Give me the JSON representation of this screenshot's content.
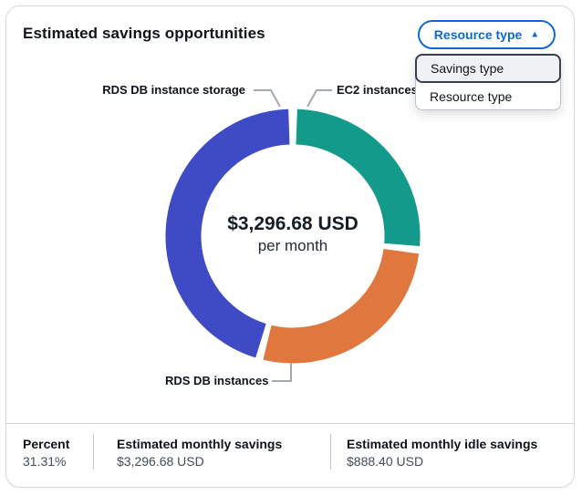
{
  "header": {
    "title": "Estimated savings opportunities",
    "dropdown_button": {
      "label": "Resource type",
      "icon": "triangle-up",
      "state": "expanded"
    },
    "dropdown_menu": {
      "options": [
        {
          "label": "Savings type",
          "highlighted": true
        },
        {
          "label": "Resource type",
          "highlighted": false
        }
      ]
    }
  },
  "chart_data": {
    "type": "donut",
    "title": "Estimated savings opportunities",
    "center_label": {
      "primary": "$3,296.68 USD",
      "secondary": "per month"
    },
    "legend_position": "callout-labels",
    "segments": [
      {
        "label": "EC2 instances",
        "color": "#149a8b",
        "share_pct_est": 26.5,
        "start_deg": 2,
        "end_deg": 94.5
      },
      {
        "label": "RDS DB instances",
        "color": "#e0773f",
        "share_pct_est": 27.0,
        "start_deg": 98,
        "end_deg": 193.5
      },
      {
        "label": "RDS DB instance storage",
        "color": "#3e4bc4",
        "share_pct_est": 46.5,
        "start_deg": 197,
        "end_deg": 358
      }
    ]
  },
  "footer_stats": [
    {
      "label": "Percent",
      "value": "31.31%"
    },
    {
      "label": "Estimated monthly savings",
      "value": "$3,296.68 USD"
    },
    {
      "label": "Estimated monthly idle savings",
      "value": "$888.40 USD"
    }
  ],
  "colors": {
    "accent_blue": "#0d69d8",
    "segment_teal": "#149a8b",
    "segment_orange": "#e0773f",
    "segment_indigo": "#3e4bc4",
    "text_primary": "#0f141a",
    "text_secondary": "#414d5c",
    "leader_line": "#a4aab4",
    "card_border": "#d5d9de"
  }
}
